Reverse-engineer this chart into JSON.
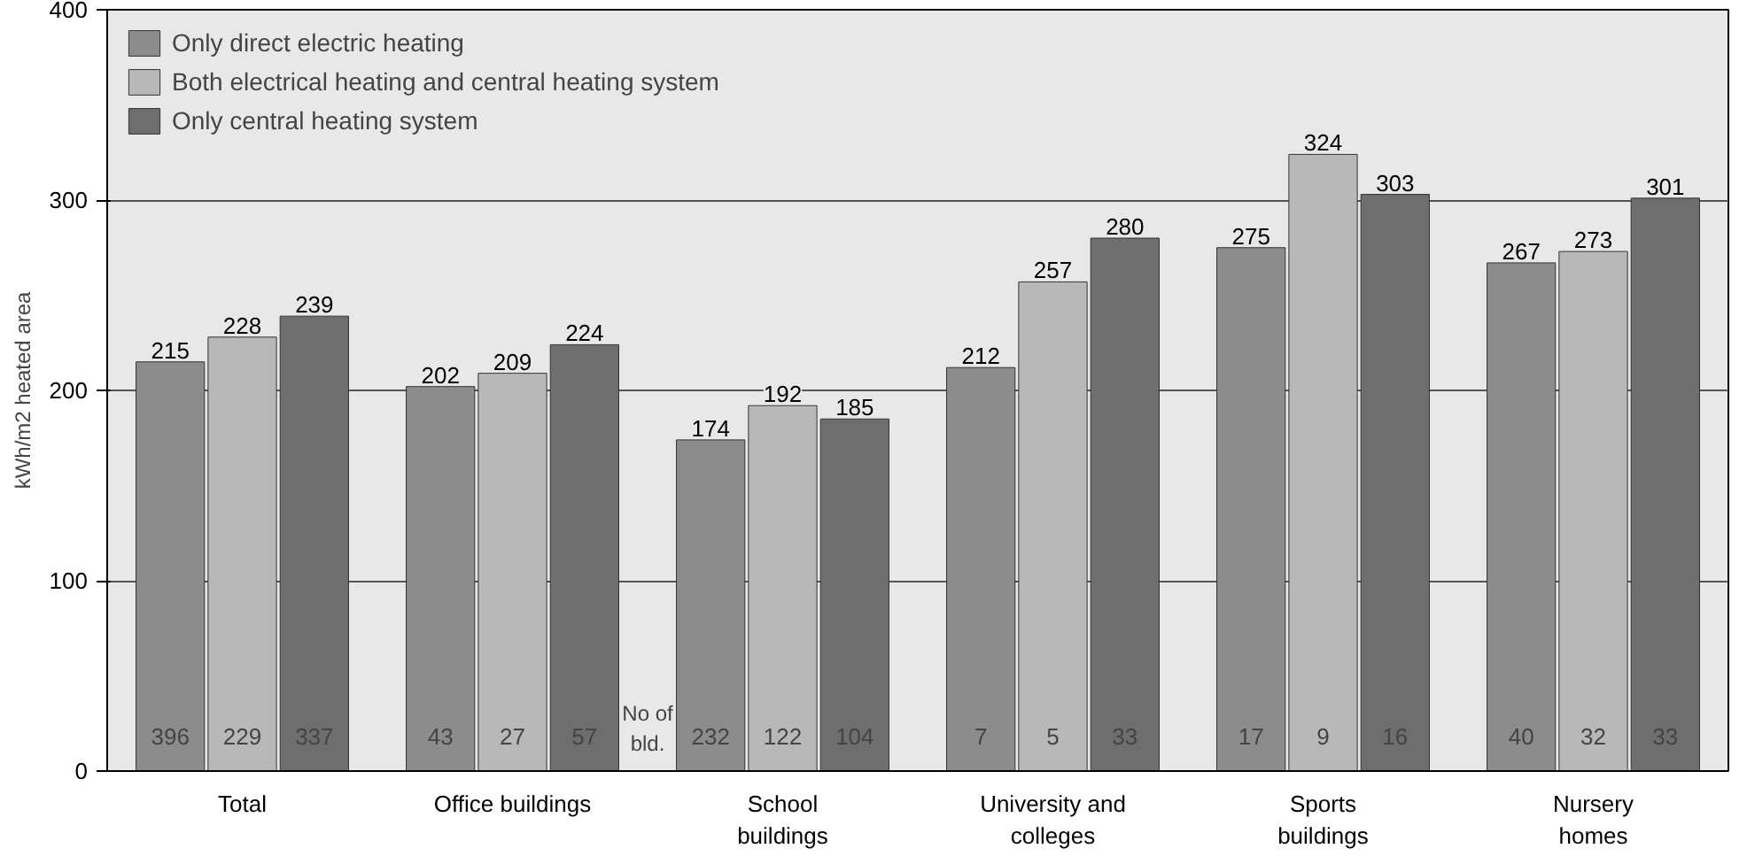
{
  "chart_data": {
    "type": "bar",
    "ylabel": "kWh/m2 heated area",
    "categories": [
      "Total",
      "Office buildings",
      "School\nbuildings",
      "University and\ncolleges",
      "Sports\nbuildings",
      "Nursery\nhomes"
    ],
    "series": [
      {
        "name": "Only direct electric heating",
        "color": "#8c8c8c",
        "values": [
          215,
          202,
          174,
          212,
          275,
          267
        ]
      },
      {
        "name": "Both electrical heating and central heating system",
        "color": "#b8b8b8",
        "values": [
          228,
          209,
          192,
          257,
          324,
          273
        ]
      },
      {
        "name": "Only central heating system",
        "color": "#6e6e6e",
        "values": [
          239,
          224,
          185,
          280,
          303,
          301
        ]
      }
    ],
    "data_labels": true,
    "ylim": [
      0,
      400
    ],
    "yticks": [
      0,
      100,
      200,
      300,
      400
    ],
    "grid": "y",
    "legend": "top left",
    "annotations": [
      "No of\nbld.",
      "396",
      "229",
      "337",
      "43",
      "27",
      "57",
      "232",
      "122",
      "104",
      "7",
      "5",
      "33",
      "17",
      "9",
      "16",
      "40",
      "32",
      "33"
    ]
  }
}
